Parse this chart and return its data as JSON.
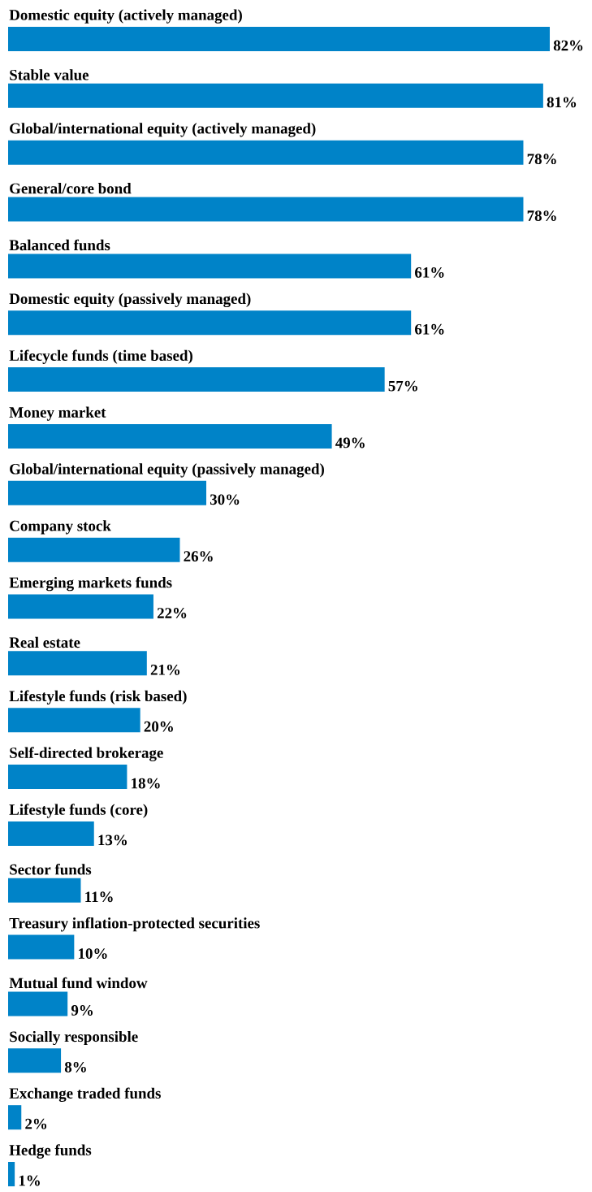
{
  "chart_data": {
    "type": "bar",
    "orientation": "horizontal",
    "color": "#0083c8",
    "categories": [
      "Domestic equity (actively managed)",
      "Stable value",
      "Global/international equity (actively managed)",
      "General/core bond",
      "Balanced funds",
      "Domestic equity (passively managed)",
      "Lifecycle funds (time based)",
      "Money market",
      "Global/international equity (passively managed)",
      "Company stock",
      "Emerging markets funds",
      "Real estate",
      "Lifestyle funds (risk based)",
      "Self-directed brokerage",
      "Lifestyle funds (core)",
      "Sector funds",
      "Treasury inflation-protected securities",
      "Mutual fund window",
      "Socially responsible",
      "Exchange traded funds",
      "Hedge funds"
    ],
    "values": [
      82,
      81,
      78,
      78,
      61,
      61,
      57,
      49,
      30,
      26,
      22,
      21,
      20,
      18,
      13,
      11,
      10,
      9,
      8,
      2,
      1
    ],
    "value_labels": [
      "82%",
      "81%",
      "78%",
      "78%",
      "61%",
      "61%",
      "57%",
      "49%",
      "30%",
      "26%",
      "22%",
      "21%",
      "20%",
      "18%",
      "13%",
      "11%",
      "10%",
      "9%",
      "8%",
      "2%",
      "1%"
    ]
  }
}
